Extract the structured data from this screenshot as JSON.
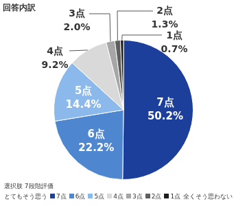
{
  "chart_data": {
    "type": "pie",
    "title": "回答内訳",
    "categories": [
      "7点",
      "6点",
      "5点",
      "4点",
      "3点",
      "2点",
      "1点"
    ],
    "values": [
      50.2,
      22.2,
      14.4,
      9.2,
      2.0,
      1.3,
      0.7
    ],
    "value_labels": [
      "50.2%",
      "22.2%",
      "14.4%",
      "9.2%",
      "2.0%",
      "1.3%",
      "0.7%"
    ],
    "colors": [
      "#1c3f9c",
      "#4f86d0",
      "#8bb9ec",
      "#d9d9d9",
      "#a6a6a6",
      "#5e5e5e",
      "#1e1e1e"
    ],
    "data_labels": true,
    "legend": "bottom-left",
    "legend_title": "選択肢 7段階評価",
    "scale_labels": {
      "high": "とてもそう思う",
      "low": "全くそう思わない"
    }
  }
}
